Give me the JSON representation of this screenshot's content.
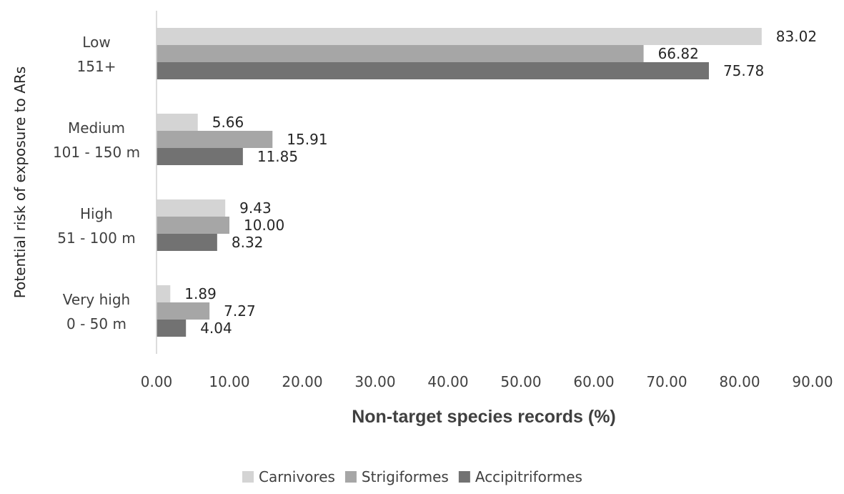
{
  "chart_data": {
    "type": "bar",
    "orientation": "horizontal",
    "title": "",
    "xlabel": "Non-target species records (%)",
    "ylabel": "Potential risk of exposure to ARs",
    "xlim": [
      0,
      90
    ],
    "xticks": [
      "0.00",
      "10.00",
      "20.00",
      "30.00",
      "40.00",
      "50.00",
      "60.00",
      "70.00",
      "80.00",
      "90.00"
    ],
    "categories": [
      {
        "line1": "Very high",
        "line2": "0 - 50 m"
      },
      {
        "line1": "High",
        "line2": "51 - 100 m"
      },
      {
        "line1": "Medium",
        "line2": "101 - 150 m"
      },
      {
        "line1": "Low",
        "line2": "151+"
      }
    ],
    "series": [
      {
        "name": "Carnivores",
        "color": "#d4d4d4",
        "values": [
          1.89,
          9.43,
          5.66,
          83.02
        ],
        "labels": [
          "1.89",
          "9.43",
          "5.66",
          "83.02"
        ]
      },
      {
        "name": "Strigiformes",
        "color": "#a6a6a6",
        "values": [
          7.27,
          10.0,
          15.91,
          66.82
        ],
        "labels": [
          "7.27",
          "10.00",
          "15.91",
          "66.82"
        ]
      },
      {
        "name": "Accipitriformes",
        "color": "#727272",
        "values": [
          4.04,
          8.32,
          11.85,
          75.78
        ],
        "labels": [
          "4.04",
          "8.32",
          "11.85",
          "75.78"
        ]
      }
    ],
    "grid": false,
    "legend_position": "bottom"
  }
}
